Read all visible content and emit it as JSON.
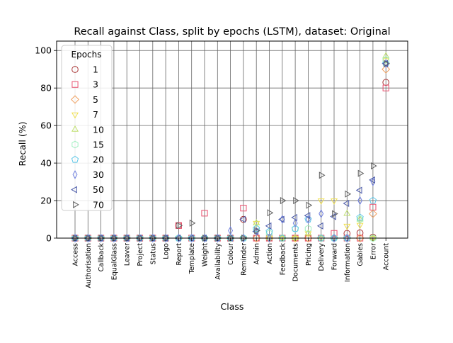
{
  "chart_data": {
    "type": "scatter",
    "title": "Recall against Class, split by epochs (LSTM), dataset: Original",
    "xlabel": "Class",
    "ylabel": "Recall (%)",
    "ylim": [
      0,
      105
    ],
    "yticks": [
      0,
      20,
      40,
      60,
      80,
      100
    ],
    "grid": true,
    "legend_title": "Epochs",
    "legend_position": "top-left",
    "categories": [
      "Access",
      "Authorisation",
      "Callback",
      "EqualGlass",
      "Leaver",
      "Project",
      "Status",
      "Logo",
      "Report",
      "Template",
      "Weight",
      "Availability",
      "Colour",
      "Reminder",
      "Admin",
      "Action",
      "Feedback",
      "Documents",
      "Pricing",
      "Delivery",
      "Forward",
      "Information",
      "Gables",
      "Error",
      "Account"
    ],
    "series": [
      {
        "name": "1",
        "marker": "circle",
        "color": "#a83232",
        "values": [
          0,
          0,
          0,
          0,
          0,
          0,
          0,
          0,
          6.7,
          0,
          0,
          0,
          0,
          10,
          0,
          0,
          0,
          0,
          0,
          0,
          0,
          2.5,
          2.8,
          0.5,
          83
        ]
      },
      {
        "name": "3",
        "marker": "square",
        "color": "#e8506e",
        "values": [
          0,
          0,
          0,
          0,
          0,
          0,
          0,
          0,
          6.7,
          0,
          13.3,
          0,
          0,
          16,
          0,
          0,
          0,
          0,
          0,
          0,
          2.5,
          0,
          0,
          16.5,
          80
        ]
      },
      {
        "name": "5",
        "marker": "diamond",
        "color": "#f0a060",
        "values": [
          0,
          0,
          0,
          0,
          0,
          0,
          0,
          0,
          0,
          0,
          0,
          0,
          0,
          0,
          0,
          0,
          0,
          0,
          0,
          0,
          0,
          0,
          0,
          13,
          90
        ]
      },
      {
        "name": "7",
        "marker": "tri_down",
        "color": "#f0e050",
        "values": [
          0,
          0,
          0,
          0,
          0,
          0,
          0,
          0,
          0,
          0,
          0,
          0,
          0,
          0,
          8,
          0,
          0,
          0,
          2.5,
          20,
          20,
          6.5,
          7,
          0,
          95
        ]
      },
      {
        "name": "10",
        "marker": "tri_up",
        "color": "#c0e070",
        "values": [
          0,
          0,
          0,
          0,
          0,
          0,
          0,
          0,
          0,
          0,
          0,
          0,
          0,
          0,
          8,
          0,
          0,
          0,
          2.5,
          0,
          0,
          13,
          10,
          0,
          97
        ]
      },
      {
        "name": "15",
        "marker": "hexagon",
        "color": "#a0f0c0",
        "values": [
          0,
          0,
          0,
          0,
          0,
          0,
          0,
          0,
          0,
          0,
          0,
          0,
          0,
          0,
          5,
          2.5,
          0,
          5,
          5,
          0,
          0,
          0,
          10,
          0,
          95
        ]
      },
      {
        "name": "20",
        "marker": "pentagon",
        "color": "#60c8e8",
        "values": [
          0,
          0,
          0,
          0,
          0,
          0,
          0,
          0,
          0,
          0,
          0,
          0,
          0,
          0,
          5,
          3.5,
          0,
          5,
          10,
          0,
          0,
          0,
          11,
          20,
          93
        ]
      },
      {
        "name": "30",
        "marker": "thin_diamond",
        "color": "#7080e0",
        "values": [
          0,
          0,
          0,
          0,
          0,
          0,
          0,
          0,
          0,
          0,
          0,
          0,
          4,
          0,
          3.5,
          0,
          10,
          8,
          10,
          13,
          0,
          0,
          20,
          30,
          93
        ]
      },
      {
        "name": "50",
        "marker": "tri_left",
        "color": "#4858a8",
        "values": [
          0,
          0,
          0,
          0,
          0,
          0,
          0,
          0,
          0,
          0,
          0,
          0,
          0,
          10,
          3.5,
          6.5,
          10,
          11,
          12,
          6.5,
          11.5,
          18.5,
          25.5,
          31,
          93
        ]
      },
      {
        "name": "70",
        "marker": "tri_right",
        "color": "#606060",
        "values": [
          0,
          0,
          0,
          0,
          0,
          0,
          0,
          0,
          6.7,
          8,
          0,
          0,
          0,
          0,
          4,
          13.5,
          20,
          20,
          17.5,
          33.5,
          13,
          23.5,
          34.5,
          38.5,
          93
        ]
      }
    ]
  }
}
